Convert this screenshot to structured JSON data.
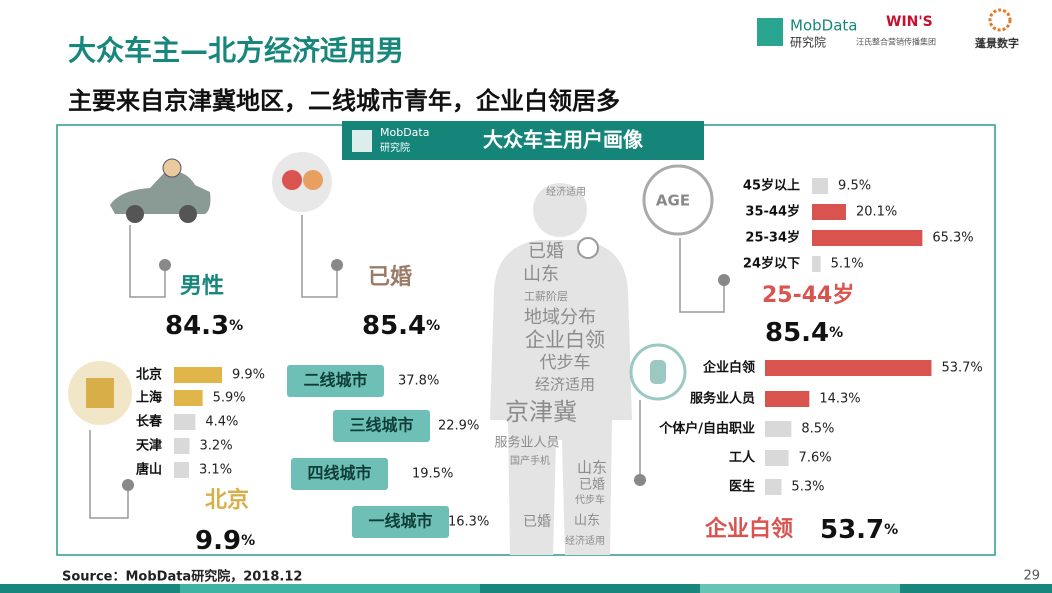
{
  "header": {
    "title": "大众车主—北方经济适用男",
    "subtitle": "主要来自京津冀地区，二线城市青年，企业白领居多"
  },
  "logos": {
    "mobdata": "MobData",
    "mobdata_sub": "研究院",
    "wins": "WIN'S",
    "wins_sub": "汪氏整合营销传播集团",
    "pengjing": "蓬景数字"
  },
  "banner": {
    "logo": "MobData",
    "logo_sub": "研究院",
    "title": "大众车主用户画像"
  },
  "gender": {
    "label": "男性",
    "value": 84.3,
    "unit": "%"
  },
  "marital": {
    "label": "已婚",
    "value": 85.4,
    "unit": "%"
  },
  "cities": {
    "categories": [
      "北京",
      "上海",
      "长春",
      "天津",
      "唐山"
    ],
    "values": [
      9.9,
      5.9,
      4.4,
      3.2,
      3.1
    ],
    "value_labels": [
      "9.9%",
      "5.9%",
      "4.4%",
      "3.2%",
      "3.1%"
    ],
    "colors": [
      "#e0b54a",
      "#e0b54a",
      "#d9d9d9",
      "#d9d9d9",
      "#d9d9d9"
    ],
    "highlight": {
      "label": "北京",
      "value": 9.9,
      "unit": "%"
    }
  },
  "city_tiers": {
    "categories": [
      "二线城市",
      "三线城市",
      "四线城市",
      "一线城市"
    ],
    "value_labels": [
      "37.8%",
      "22.9%",
      "19.5%",
      "16.3%"
    ]
  },
  "age": {
    "icon": "AGE",
    "categories": [
      "45岁以上",
      "35-44岁",
      "25-34岁",
      "24岁以下"
    ],
    "values": [
      9.5,
      20.1,
      65.3,
      5.1
    ],
    "value_labels": [
      "9.5%",
      "20.1%",
      "65.3%",
      "5.1%"
    ],
    "colors": [
      "#d9d9d9",
      "#d9534f",
      "#d9534f",
      "#d9d9d9"
    ],
    "highlight": {
      "label": "25-44岁",
      "value": 85.4,
      "unit": "%"
    }
  },
  "occupation": {
    "categories": [
      "企业白领",
      "服务业人员",
      "个体户/自由职业",
      "工人",
      "医生"
    ],
    "values": [
      53.7,
      14.3,
      8.5,
      7.6,
      5.3
    ],
    "value_labels": [
      "53.7%",
      "14.3%",
      "8.5%",
      "7.6%",
      "5.3%"
    ],
    "colors": [
      "#d9534f",
      "#d9534f",
      "#d9d9d9",
      "#d9d9d9",
      "#d9d9d9"
    ],
    "highlight": {
      "label": "企业白领",
      "value": 53.7,
      "unit": "%"
    }
  },
  "word_cloud": [
    "经济适用",
    "已婚",
    "山东",
    "工薪阶层",
    "地域分布",
    "企业白领",
    "代步车",
    "经济适用",
    "京津冀",
    "服务业人员",
    "国产手机",
    "山东",
    "已婚",
    "代步车",
    "已婚",
    "山东",
    "经济适用"
  ],
  "footer": {
    "source": "Source：MobData研究院，2018.12",
    "page": "29"
  }
}
